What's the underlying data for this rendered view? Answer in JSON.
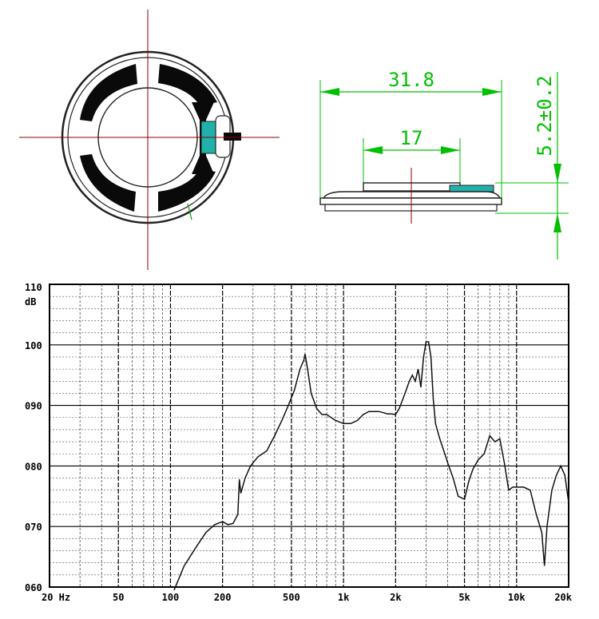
{
  "drawing": {
    "dim_outer_diameter": "31.8",
    "dim_inner_diameter": "17",
    "dim_height": "5.2±0.2",
    "line_color": "#00c000",
    "centerline_color": "#8b0000",
    "terminal_color": "#20b2aa"
  },
  "chart_data": {
    "type": "line",
    "title": "",
    "xlabel": "",
    "ylabel": "dB",
    "xscale": "log",
    "xlim": [
      20,
      20000
    ],
    "ylim": [
      60,
      110
    ],
    "grid": true,
    "y_ticks": [
      {
        "value": 110,
        "label": "110"
      },
      {
        "value": 100,
        "label": "100"
      },
      {
        "value": 90,
        "label": "090"
      },
      {
        "value": 80,
        "label": "080"
      },
      {
        "value": 70,
        "label": "070"
      },
      {
        "value": 60,
        "label": "060"
      }
    ],
    "y_unit_label": "dB",
    "x_ticks": [
      {
        "value": 20,
        "label": "20 Hz"
      },
      {
        "value": 50,
        "label": "50"
      },
      {
        "value": 100,
        "label": "100"
      },
      {
        "value": 200,
        "label": "200"
      },
      {
        "value": 500,
        "label": "500"
      },
      {
        "value": 1000,
        "label": "1k"
      },
      {
        "value": 2000,
        "label": "2k"
      },
      {
        "value": 5000,
        "label": "5k"
      },
      {
        "value": 10000,
        "label": "10k"
      },
      {
        "value": 20000,
        "label": "20k"
      }
    ],
    "series": [
      {
        "x": [
          105,
          120,
          140,
          160,
          180,
          200,
          215,
          230,
          245,
          250,
          255,
          270,
          290,
          320,
          360,
          400,
          440,
          480,
          520,
          560,
          590,
          600,
          620,
          650,
          700,
          750,
          800,
          900,
          1000,
          1100,
          1200,
          1300,
          1400,
          1500,
          1600,
          1700,
          1800,
          1900,
          2000,
          2100,
          2200,
          2300,
          2400,
          2500,
          2600,
          2700,
          2800,
          2900,
          3000,
          3100,
          3200,
          3300,
          3400,
          3600,
          3800,
          4000,
          4300,
          4600,
          5000,
          5300,
          5600,
          6000,
          6500,
          7000,
          7500,
          8000,
          8500,
          9000,
          9500,
          10000,
          11000,
          12000,
          13000,
          14000,
          14500,
          15000,
          16000,
          17000,
          18000,
          19000,
          20000
        ],
        "y": [
          59.5,
          63.5,
          66.5,
          69.0,
          70.3,
          70.8,
          70.3,
          70.5,
          72.0,
          77.8,
          75.5,
          78.0,
          80.0,
          81.5,
          82.5,
          85.0,
          87.5,
          90.0,
          92.5,
          96.0,
          97.5,
          98.5,
          96.0,
          92.0,
          89.5,
          88.5,
          88.5,
          87.5,
          87.0,
          87.0,
          87.5,
          88.5,
          89.0,
          89.0,
          89.0,
          88.8,
          88.6,
          88.6,
          88.5,
          89.5,
          91.0,
          92.5,
          94.0,
          95.0,
          94.0,
          96.0,
          93.0,
          98.0,
          100.5,
          100.5,
          98.0,
          91.0,
          87.0,
          84.5,
          82.5,
          80.5,
          78.0,
          75.0,
          74.5,
          77.5,
          79.5,
          81.0,
          82.0,
          85.0,
          84.0,
          84.5,
          80.5,
          76.0,
          76.5,
          76.5,
          76.5,
          76.0,
          72.0,
          69.0,
          63.5,
          70.0,
          76.0,
          78.5,
          80.0,
          78.5,
          74.0
        ]
      }
    ]
  }
}
